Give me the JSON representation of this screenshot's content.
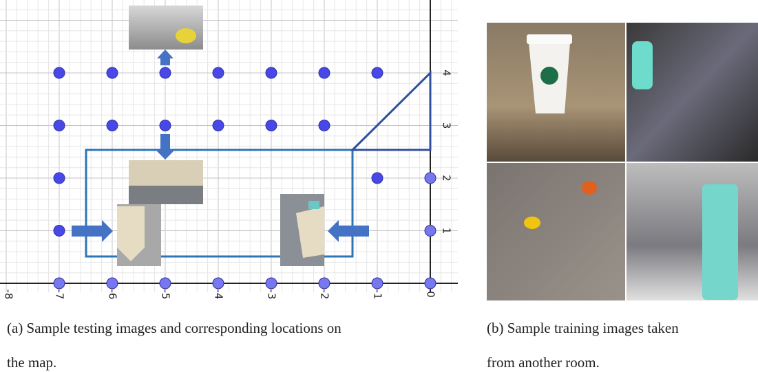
{
  "panel_a": {
    "x_ticks": [
      "-8",
      "-7",
      "-6",
      "-5",
      "-4",
      "-3",
      "-2",
      "-1",
      "0"
    ],
    "y_ticks": [
      "1",
      "2",
      "3",
      "4"
    ],
    "caption": [
      "(a) Sample testing images and corresponding locations on",
      "the map."
    ]
  },
  "panel_b": {
    "caption": [
      "(b) Sample training images taken",
      "from another room."
    ]
  }
}
